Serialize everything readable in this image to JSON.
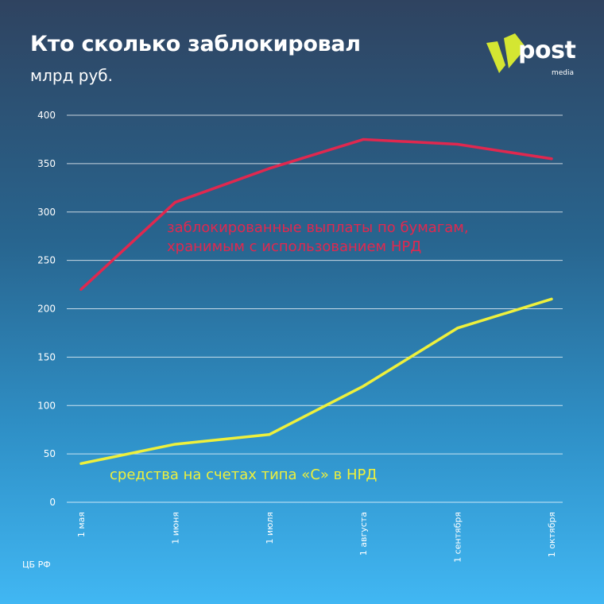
{
  "header": {
    "title": "Кто сколько заблокировал",
    "subtitle": "млрд руб."
  },
  "logo": {
    "text": "post",
    "subtext": "media",
    "accent_color": "#d4e632"
  },
  "source": "ЦБ РФ",
  "chart_data": {
    "type": "line",
    "x": [
      "1 мая",
      "1 июня",
      "1 июля",
      "1 августа",
      "1 сентября",
      "1 октября"
    ],
    "ylim": [
      0,
      400
    ],
    "yticks": [
      0,
      50,
      100,
      150,
      200,
      250,
      300,
      350,
      400
    ],
    "grid": true,
    "series": [
      {
        "name": "заблокированные выплаты по бумагам, хранимым с использованием НРД",
        "label_lines": [
          "заблокированные выплаты по бумагам,",
          "хранимым с использованием НРД"
        ],
        "color": "#e0284f",
        "values": [
          220,
          310,
          345,
          375,
          370,
          355
        ]
      },
      {
        "name": "средства на счетах типа «С» в НРД",
        "label_lines": [
          "средства на счетах типа «С» в НРД"
        ],
        "color": "#eef03c",
        "values": [
          40,
          60,
          70,
          120,
          180,
          210
        ]
      }
    ]
  }
}
